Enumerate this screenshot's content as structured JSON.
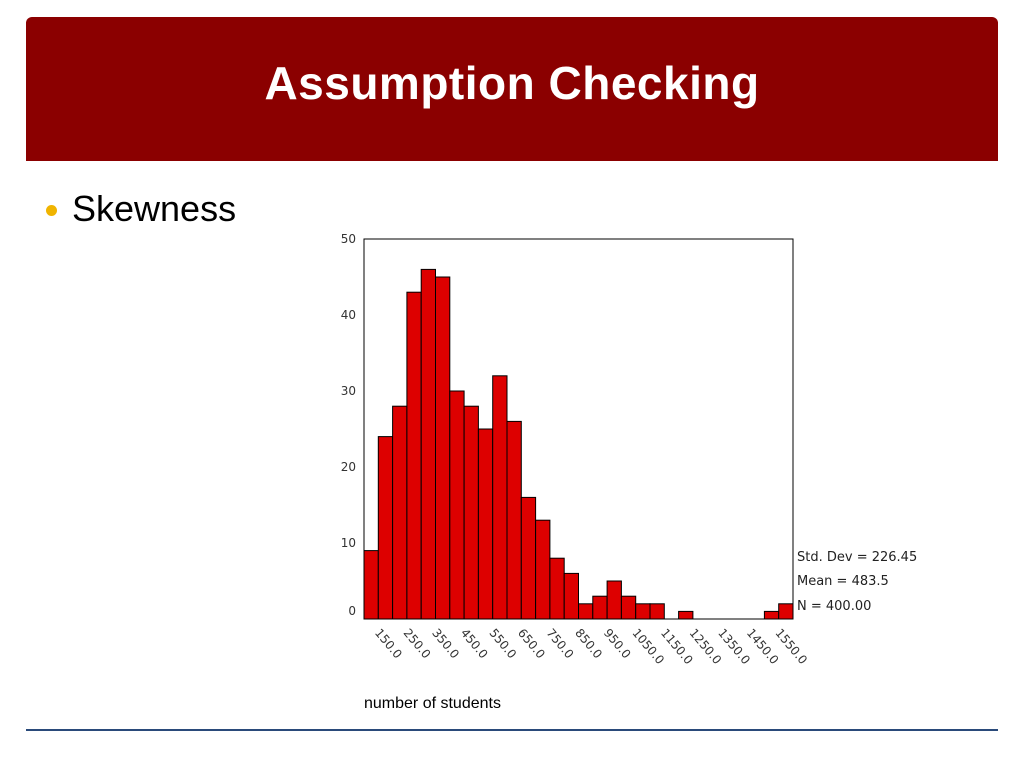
{
  "slide": {
    "title": "Assumption Checking",
    "bullet": "Skewness",
    "colors": {
      "title_bar": "#8b0000",
      "bullet": "#f0b400",
      "rule": "#2a4a7a",
      "bar_fill": "#dd0000"
    }
  },
  "chart_data": {
    "type": "bar",
    "title": "",
    "xlabel": "number of students",
    "ylabel": "",
    "ylim": [
      0,
      50
    ],
    "yticks": [
      0,
      10,
      20,
      30,
      40,
      50
    ],
    "bin_start": 100,
    "bin_width": 50,
    "x_tick_labels": [
      "150.0",
      "250.0",
      "350.0",
      "450.0",
      "550.0",
      "650.0",
      "750.0",
      "850.0",
      "950.0",
      "1050.0",
      "1150.0",
      "1250.0",
      "1350.0",
      "1450.0",
      "1550.0"
    ],
    "values": [
      9,
      24,
      28,
      43,
      46,
      45,
      30,
      28,
      25,
      32,
      26,
      16,
      13,
      8,
      6,
      2,
      3,
      5,
      3,
      2,
      2,
      0,
      1,
      0,
      0,
      0,
      0,
      0,
      1,
      2
    ],
    "grid": false,
    "stats": [
      "Std. Dev = 226.45",
      "Mean = 483.5",
      "N = 400.00"
    ]
  }
}
